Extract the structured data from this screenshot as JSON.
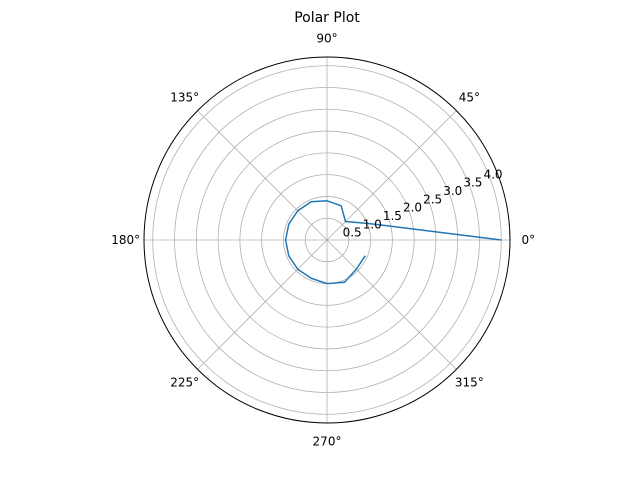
{
  "chart_data": {
    "type": "line",
    "projection": "polar",
    "title": "Polar Plot",
    "theta_unit": "degrees",
    "theta_ticks": [
      0,
      45,
      90,
      135,
      180,
      225,
      270,
      315
    ],
    "theta_tick_labels": [
      "0°",
      "45°",
      "90°",
      "135°",
      "180°",
      "225°",
      "270°",
      "315°"
    ],
    "r_ticks": [
      0.5,
      1.0,
      1.5,
      2.0,
      2.5,
      3.0,
      3.5,
      4.0
    ],
    "r_tick_labels": [
      "0.5",
      "1.0",
      "1.5",
      "2.0",
      "2.5",
      "3.0",
      "3.5",
      "4.0"
    ],
    "rlim": [
      0,
      4.2
    ],
    "grid": true,
    "series": [
      {
        "color": "#1f77b4",
        "theta": [
          0,
          22.5,
          45,
          67.5,
          90,
          112.5,
          135,
          157.5,
          180,
          202.5,
          225,
          247.5,
          270,
          292.5,
          315,
          337.5
        ],
        "r": [
          4.0,
          1.0,
          0.6,
          0.85,
          0.9,
          0.95,
          0.95,
          0.95,
          0.95,
          0.95,
          0.95,
          0.95,
          1.0,
          1.05,
          0.95,
          0.95
        ]
      }
    ]
  }
}
